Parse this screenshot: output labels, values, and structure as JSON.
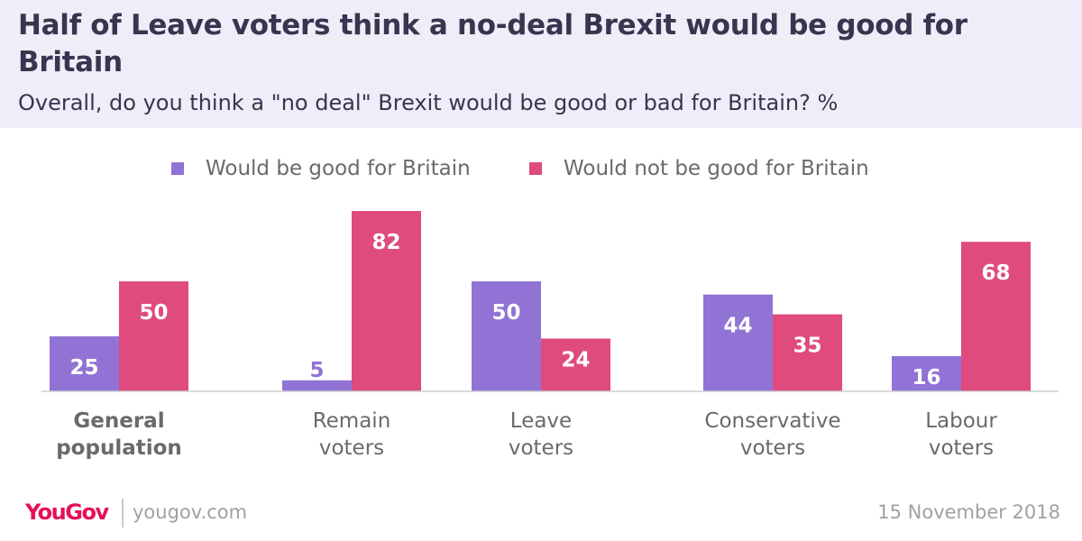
{
  "header": {
    "title": "Half of Leave voters think a no-deal Brexit would be good for Britain",
    "subtitle": "Overall, do you think a \"no deal\" Brexit would be good or bad for Britain? %"
  },
  "footer": {
    "brand": "YouGov",
    "site": "yougov.com",
    "date": "15 November 2018"
  },
  "colors": {
    "good": "#9073d4",
    "not_good": "#df4b7e",
    "header_bg": "#efedf7",
    "text_dark": "#3a3450",
    "text_grey": "#6a6a6a",
    "brand_red": "#e5105a"
  },
  "chart_data": {
    "type": "bar",
    "categories": [
      [
        "General",
        "population"
      ],
      [
        "Remain",
        "voters"
      ],
      [
        "Leave",
        "voters"
      ],
      [
        "Conservative",
        "voters"
      ],
      [
        "Labour",
        "voters"
      ]
    ],
    "category_bold": [
      true,
      false,
      false,
      false,
      false
    ],
    "series": [
      {
        "name": "Would be good for Britain",
        "values": [
          25,
          5,
          50,
          44,
          16
        ]
      },
      {
        "name": "Would not be good for Britain",
        "values": [
          50,
          82,
          24,
          35,
          68
        ]
      }
    ],
    "ylim": [
      0,
      82
    ],
    "grid": false,
    "legend_position": "top-center"
  }
}
